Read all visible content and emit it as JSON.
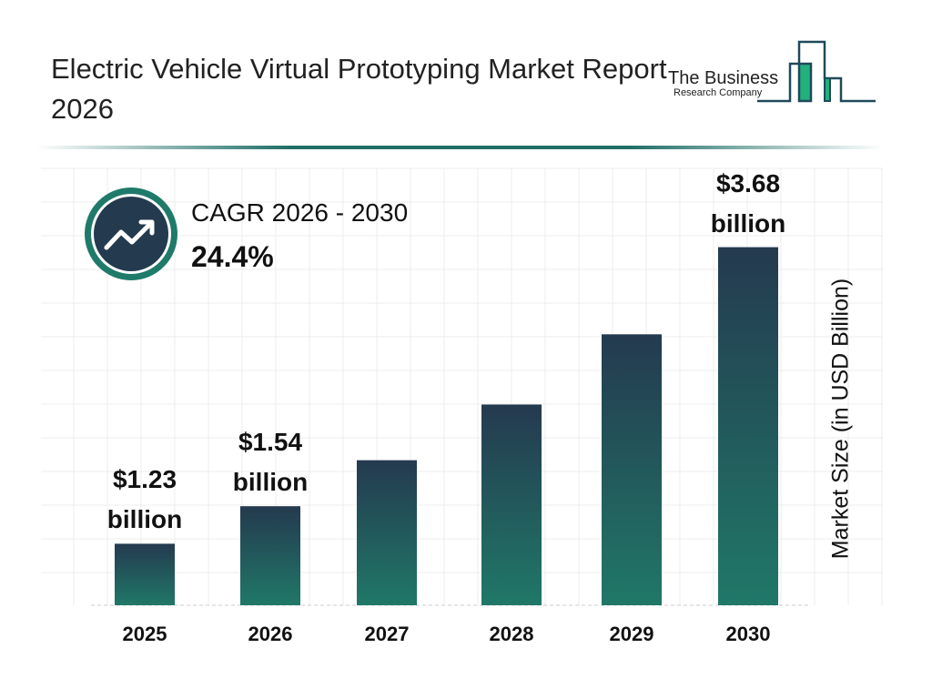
{
  "header": {
    "title": "Electric Vehicle Virtual Prototyping Market Report 2026",
    "logo_line1": "The Business",
    "logo_line2": "Research Company"
  },
  "cagr": {
    "label": "CAGR 2026 - 2030",
    "value": "24.4%",
    "icon": "trending-up-icon"
  },
  "colors": {
    "bar_top": "#243a4f",
    "bar_bottom": "#207868",
    "accent": "#1f7a6a"
  },
  "chart_data": {
    "type": "bar",
    "categories": [
      "2025",
      "2026",
      "2027",
      "2028",
      "2029",
      "2030"
    ],
    "values": [
      1.23,
      1.54,
      1.92,
      2.38,
      2.96,
      3.68
    ],
    "data_labels": [
      {
        "index": 0,
        "line1": "$1.23",
        "line2": "billion"
      },
      {
        "index": 1,
        "line1": "$1.54",
        "line2": "billion"
      },
      {
        "index": 5,
        "line1": "$3.68",
        "line2": "billion"
      }
    ],
    "ylabel": "Market Size (in USD Billion)",
    "xlabel": "",
    "grid": true
  }
}
